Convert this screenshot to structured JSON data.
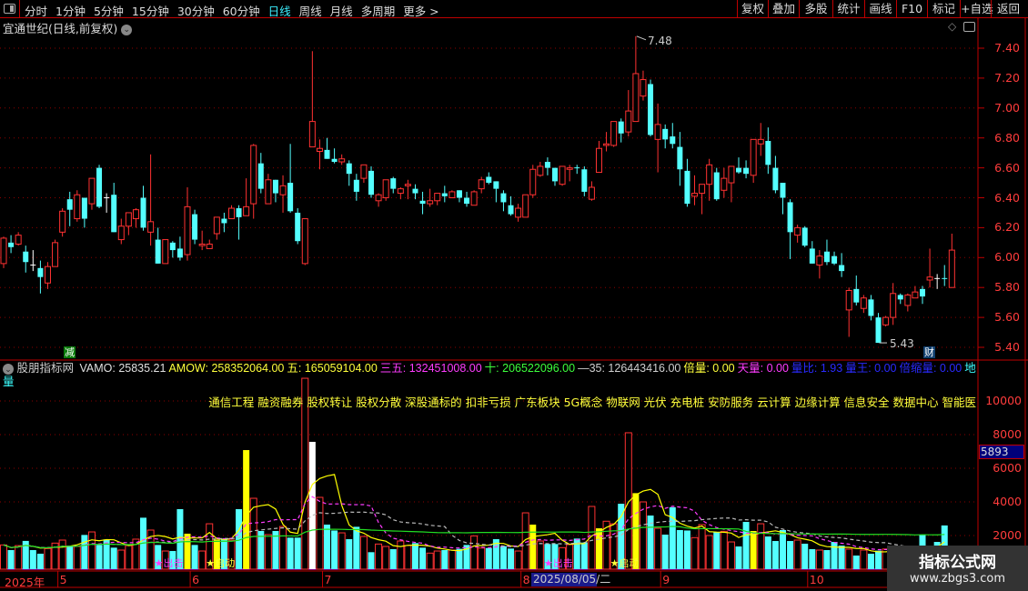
{
  "toolbar": {
    "periods": [
      "分时",
      "1分钟",
      "5分钟",
      "15分钟",
      "30分钟",
      "60分钟",
      "日线",
      "周线",
      "月线",
      "多周期",
      "更多 >"
    ],
    "active_period": "日线",
    "buttons": [
      "复权",
      "叠加",
      "多股",
      "统计",
      "画线",
      "F10",
      "标记",
      "+自选",
      "返回"
    ]
  },
  "stock": {
    "title": "宜通世纪(日线,前复权)"
  },
  "price_axis": {
    "ticks": [
      "7.40",
      "7.20",
      "7.00",
      "6.80",
      "6.60",
      "6.40",
      "6.20",
      "6.00",
      "5.80",
      "5.60",
      "5.40"
    ]
  },
  "price_marks": {
    "high": "7.48",
    "low": "5.43",
    "tag_left": "减",
    "tag_right": "财"
  },
  "indicator": {
    "name": "股朋指标网",
    "items": [
      {
        "label": "VAMO: 25835.21",
        "color": "#e0e0e0"
      },
      {
        "label": "AMOW: 258352064.00",
        "color": "#ffff3c"
      },
      {
        "label": "五: 165059104.00",
        "color": "#ffff3c"
      },
      {
        "label": "三五: 132451008.00",
        "color": "#ff3cff"
      },
      {
        "label": "十: 206522096.00",
        "color": "#3cff3c"
      },
      {
        "label": "—35: 126443416.00",
        "color": "#d0d0d0"
      },
      {
        "label": "倍量: 0.00",
        "color": "#ffff3c"
      },
      {
        "label": "天量: 0.00",
        "color": "#ff3cff"
      },
      {
        "label": "量比: 1.93",
        "color": "#2a2aff"
      },
      {
        "label": "量王: 0.00",
        "color": "#2a2aff"
      },
      {
        "label": "倍缩量: 0.00",
        "color": "#2a2aff"
      },
      {
        "label": "地量",
        "color": "#3cffff"
      }
    ],
    "concepts": "通信工程 融资融券 股权转让 股权分散 深股通标的 扣非亏损 广东板块 5G概念 物联网 光伏 充电桩 安防服务 云计算 边缘计算 信息安全 数据中心 智能医"
  },
  "volume_axis": {
    "ticks": [
      "10000",
      "8000",
      "6000",
      "4000",
      "2000"
    ],
    "current": "5893"
  },
  "signals": [
    {
      "label": "★出击",
      "color": "#ff3cff",
      "at": 21
    },
    {
      "label": "★启动",
      "color": "#ffff3c",
      "at": 28
    },
    {
      "label": "★出击",
      "color": "#ff3cff",
      "at": 74
    },
    {
      "label": "★启动",
      "color": "#ffff3c",
      "at": 83
    }
  ],
  "time_axis": {
    "months": [
      {
        "label": "2025年",
        "at": 0
      },
      {
        "label": "5",
        "at": 8
      },
      {
        "label": "6",
        "at": 26
      },
      {
        "label": "7",
        "at": 44
      },
      {
        "label": "8",
        "at": 71
      },
      {
        "label": "9",
        "at": 90
      },
      {
        "label": "10",
        "at": 110
      }
    ],
    "cursor_date": "2025/08/05/二"
  },
  "watermark": {
    "title": "指标公式网",
    "url": "www.zbgs3.com"
  },
  "colors": {
    "up": "#ff3232",
    "down": "#54ffff",
    "grid": "#8b0000",
    "signal_bar": "#ffff00",
    "spike_bar": "#ffffff"
  },
  "chart_data": {
    "type": "candlestick",
    "price_range": [
      5.4,
      7.48
    ],
    "ohlc": [
      [
        5.96,
        6.14,
        5.93,
        6.13
      ],
      [
        6.1,
        6.15,
        6.03,
        6.07
      ],
      [
        6.09,
        6.17,
        6.08,
        6.15
      ],
      [
        6.04,
        6.08,
        5.9,
        5.97
      ],
      [
        5.95,
        6.05,
        5.91,
        5.95
      ],
      [
        5.93,
        5.98,
        5.76,
        5.87
      ],
      [
        5.83,
        5.97,
        5.79,
        5.94
      ],
      [
        5.94,
        6.12,
        5.94,
        6.1
      ],
      [
        6.17,
        6.33,
        6.14,
        6.31
      ],
      [
        6.39,
        6.44,
        6.21,
        6.32
      ],
      [
        6.26,
        6.45,
        6.24,
        6.42
      ],
      [
        6.4,
        6.4,
        6.2,
        6.26
      ],
      [
        6.36,
        6.53,
        6.32,
        6.53
      ],
      [
        6.6,
        6.62,
        6.33,
        6.34
      ],
      [
        6.4,
        6.43,
        6.3,
        6.4
      ],
      [
        6.42,
        6.5,
        6.17,
        6.17
      ],
      [
        6.12,
        6.26,
        6.09,
        6.21
      ],
      [
        6.21,
        6.3,
        6.15,
        6.3
      ],
      [
        6.26,
        6.33,
        6.2,
        6.32
      ],
      [
        6.4,
        6.48,
        6.18,
        6.2
      ],
      [
        6.17,
        6.69,
        6.08,
        6.24
      ],
      [
        6.12,
        6.2,
        5.96,
        5.96
      ],
      [
        5.96,
        6.12,
        5.96,
        6.12
      ],
      [
        6.1,
        6.11,
        6.0,
        6.05
      ],
      [
        6.06,
        6.14,
        5.98,
        6.0
      ],
      [
        6.02,
        6.47,
        5.98,
        6.34
      ],
      [
        6.29,
        6.32,
        6.09,
        6.12
      ],
      [
        6.08,
        6.18,
        6.05,
        6.09
      ],
      [
        6.06,
        6.12,
        6.06,
        6.09
      ],
      [
        6.16,
        6.27,
        6.12,
        6.27
      ],
      [
        6.26,
        6.3,
        6.17,
        6.23
      ],
      [
        6.26,
        6.35,
        6.26,
        6.33
      ],
      [
        6.33,
        6.35,
        6.12,
        6.27
      ],
      [
        6.28,
        6.53,
        6.28,
        6.34
      ],
      [
        6.36,
        6.76,
        6.26,
        6.75
      ],
      [
        6.63,
        6.7,
        6.43,
        6.46
      ],
      [
        6.36,
        6.56,
        6.36,
        6.52
      ],
      [
        6.52,
        6.52,
        6.37,
        6.43
      ],
      [
        6.42,
        6.55,
        6.3,
        6.48
      ],
      [
        6.5,
        6.76,
        6.3,
        6.31
      ],
      [
        6.3,
        6.33,
        6.09,
        6.11
      ],
      [
        5.96,
        6.26,
        5.95,
        6.26
      ],
      [
        6.74,
        7.38,
        6.74,
        6.91
      ],
      [
        6.71,
        6.79,
        6.59,
        6.73
      ],
      [
        6.72,
        6.8,
        6.66,
        6.66
      ],
      [
        6.66,
        6.73,
        6.63,
        6.64
      ],
      [
        6.64,
        6.69,
        6.62,
        6.66
      ],
      [
        6.63,
        6.65,
        6.48,
        6.56
      ],
      [
        6.52,
        6.56,
        6.38,
        6.44
      ],
      [
        6.53,
        6.62,
        6.5,
        6.62
      ],
      [
        6.58,
        6.61,
        6.4,
        6.42
      ],
      [
        6.38,
        6.43,
        6.34,
        6.42
      ],
      [
        6.4,
        6.52,
        6.38,
        6.52
      ],
      [
        6.53,
        6.54,
        6.43,
        6.46
      ],
      [
        6.43,
        6.47,
        6.39,
        6.46
      ],
      [
        6.48,
        6.52,
        6.39,
        6.49
      ],
      [
        6.46,
        6.49,
        6.39,
        6.43
      ],
      [
        6.38,
        6.44,
        6.29,
        6.36
      ],
      [
        6.36,
        6.46,
        6.34,
        6.38
      ],
      [
        6.38,
        6.43,
        6.35,
        6.43
      ],
      [
        6.43,
        6.48,
        6.37,
        6.41
      ],
      [
        6.4,
        6.45,
        6.4,
        6.44
      ],
      [
        6.45,
        6.45,
        6.37,
        6.4
      ],
      [
        6.4,
        6.44,
        6.34,
        6.36
      ],
      [
        6.35,
        6.45,
        6.35,
        6.44
      ],
      [
        6.46,
        6.54,
        6.43,
        6.52
      ],
      [
        6.54,
        6.57,
        6.49,
        6.5
      ],
      [
        6.51,
        6.51,
        6.37,
        6.46
      ],
      [
        6.43,
        6.45,
        6.31,
        6.37
      ],
      [
        6.35,
        6.41,
        6.28,
        6.29
      ],
      [
        6.27,
        6.36,
        6.24,
        6.33
      ],
      [
        6.27,
        6.42,
        6.27,
        6.42
      ],
      [
        6.42,
        6.62,
        6.4,
        6.59
      ],
      [
        6.55,
        6.64,
        6.54,
        6.61
      ],
      [
        6.64,
        6.67,
        6.55,
        6.6
      ],
      [
        6.6,
        6.6,
        6.48,
        6.51
      ],
      [
        6.49,
        6.61,
        6.48,
        6.61
      ],
      [
        6.59,
        6.62,
        6.51,
        6.6
      ],
      [
        6.6,
        6.62,
        6.56,
        6.6
      ],
      [
        6.59,
        6.61,
        6.41,
        6.44
      ],
      [
        6.39,
        6.51,
        6.38,
        6.47
      ],
      [
        6.57,
        6.78,
        6.57,
        6.73
      ],
      [
        6.75,
        6.84,
        6.71,
        6.76
      ],
      [
        6.75,
        6.91,
        6.74,
        6.91
      ],
      [
        6.91,
        6.93,
        6.77,
        6.83
      ],
      [
        6.84,
        7.12,
        6.81,
        6.98
      ],
      [
        6.91,
        7.48,
        6.91,
        7.23
      ],
      [
        7.08,
        7.25,
        7.05,
        7.19
      ],
      [
        7.16,
        7.19,
        6.81,
        6.82
      ],
      [
        6.79,
        7.03,
        6.57,
        6.89
      ],
      [
        6.86,
        6.89,
        6.73,
        6.79
      ],
      [
        6.81,
        6.9,
        6.73,
        6.76
      ],
      [
        6.74,
        6.84,
        6.48,
        6.59
      ],
      [
        6.58,
        6.66,
        6.34,
        6.36
      ],
      [
        6.41,
        6.55,
        6.35,
        6.43
      ],
      [
        6.43,
        6.49,
        6.29,
        6.49
      ],
      [
        6.49,
        6.66,
        6.38,
        6.62
      ],
      [
        6.57,
        6.6,
        6.38,
        6.39
      ],
      [
        6.45,
        6.6,
        6.4,
        6.53
      ],
      [
        6.5,
        6.61,
        6.37,
        6.61
      ],
      [
        6.6,
        6.67,
        6.56,
        6.57
      ],
      [
        6.6,
        6.65,
        6.53,
        6.56
      ],
      [
        6.55,
        6.79,
        6.5,
        6.79
      ],
      [
        6.76,
        6.9,
        6.68,
        6.79
      ],
      [
        6.78,
        6.87,
        6.56,
        6.62
      ],
      [
        6.6,
        6.68,
        6.43,
        6.45
      ],
      [
        6.5,
        6.5,
        6.29,
        6.4
      ],
      [
        6.37,
        6.39,
        5.99,
        6.17
      ],
      [
        6.15,
        6.22,
        6.1,
        6.2
      ],
      [
        6.2,
        6.21,
        6.07,
        6.08
      ],
      [
        6.06,
        6.11,
        5.96,
        5.96
      ],
      [
        5.95,
        6.05,
        5.86,
        6.01
      ],
      [
        6.04,
        6.12,
        5.95,
        5.97
      ],
      [
        6.01,
        6.04,
        5.95,
        5.96
      ],
      [
        5.95,
        6.03,
        5.87,
        5.91
      ],
      [
        5.65,
        5.8,
        5.47,
        5.78
      ],
      [
        5.79,
        5.88,
        5.68,
        5.7
      ],
      [
        5.66,
        5.75,
        5.63,
        5.73
      ],
      [
        5.72,
        5.75,
        5.58,
        5.61
      ],
      [
        5.6,
        5.63,
        5.43,
        5.43
      ],
      [
        5.55,
        5.61,
        5.54,
        5.6
      ],
      [
        5.6,
        5.83,
        5.55,
        5.76
      ],
      [
        5.75,
        5.76,
        5.69,
        5.72
      ],
      [
        5.68,
        5.76,
        5.64,
        5.75
      ],
      [
        5.73,
        5.81,
        5.73,
        5.77
      ],
      [
        5.79,
        5.81,
        5.69,
        5.74
      ],
      [
        5.85,
        6.06,
        5.8,
        5.87
      ],
      [
        5.86,
        5.89,
        5.79,
        5.86
      ],
      [
        5.86,
        5.95,
        5.81,
        5.86
      ],
      [
        5.8,
        6.16,
        5.8,
        6.05
      ]
    ],
    "volume": [
      1440,
      1135,
      1400,
      1680,
      1135,
      920,
      1225,
      1550,
      1730,
      1400,
      1350,
      2035,
      2215,
      1440,
      1765,
      1280,
      1135,
      1400,
      1785,
      3060,
      2325,
      1440,
      1080,
      1080,
      3570,
      2110,
      1440,
      1080,
      2700,
      1765,
      1820,
      1730,
      3570,
      7080,
      4215,
      2270,
      2055,
      2270,
      2540,
      1875,
      1875,
      11350,
      7570,
      4270,
      2650,
      2300,
      2160,
      1785,
      2520,
      1945,
      1010,
      1495,
      1350,
      1190,
      1675,
      1405,
      1550,
      1280,
      955,
      1080,
      1135,
      1135,
      1210,
      1440,
      1980,
      1260,
      1260,
      1785,
      1370,
      1225,
      1080,
      3350,
      2650,
      1675,
      1495,
      1495,
      1280,
      1460,
      1820,
      1585,
      3730,
      2430,
      2850,
      2700,
      3890,
      8110,
      4520,
      4000,
      3190,
      2430,
      2055,
      3680,
      2325,
      2300,
      1875,
      2650,
      2000,
      2200,
      2250,
      1620,
      1350,
      2810,
      2270,
      2700,
      1945,
      1675,
      2325,
      1675,
      1730,
      1515,
      1190,
      1135,
      1135,
      1620,
      1400,
      1190,
      810,
      1135,
      920,
      1100,
      1200,
      1000,
      900,
      1000,
      950,
      2055,
      900,
      1620,
      2600
    ],
    "signal_bar_indices": [
      25,
      29,
      33,
      72,
      81,
      86,
      102,
      126
    ],
    "spike_bar_indices": [
      42
    ],
    "volume_range": [
      0,
      11500
    ]
  }
}
